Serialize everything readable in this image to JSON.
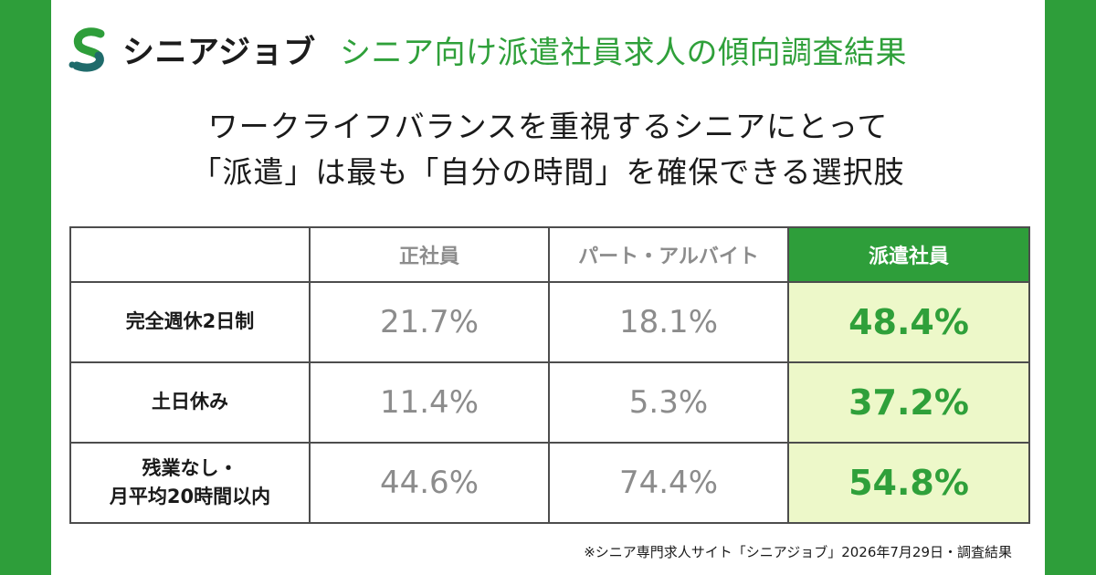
{
  "brand": {
    "name": "シニアジョブ",
    "logo_icon": "s-logo-icon",
    "colors": {
      "primary_green": "#2e9e3a",
      "dark_teal": "#1f6b6b",
      "highlight_bg": "#edf8c9"
    }
  },
  "survey_title": "シニア向け派遣社員求人の傾向調査結果",
  "headline": {
    "line1": "ワークライフバランスを重視するシニアにとって",
    "line2": "「派遣」は最も「自分の時間」を確保できる選択肢"
  },
  "chart_data": {
    "type": "table",
    "columns": [
      "",
      "正社員",
      "パート・アルバイト",
      "派遣社員"
    ],
    "highlight_column": "派遣社員",
    "rows": [
      {
        "label_lines": [
          "完全週休2日制"
        ],
        "values": [
          "21.7%",
          "18.1%",
          "48.4%"
        ]
      },
      {
        "label_lines": [
          "土日休み"
        ],
        "values": [
          "11.4%",
          "5.3%",
          "37.2%"
        ]
      },
      {
        "label_lines": [
          "残業なし・",
          "月平均20時間以内"
        ],
        "values": [
          "44.6%",
          "74.4%",
          "54.8%"
        ]
      }
    ]
  },
  "source": "※シニア専門求人サイト「シニアジョブ」2026年7月29日・調査結果"
}
